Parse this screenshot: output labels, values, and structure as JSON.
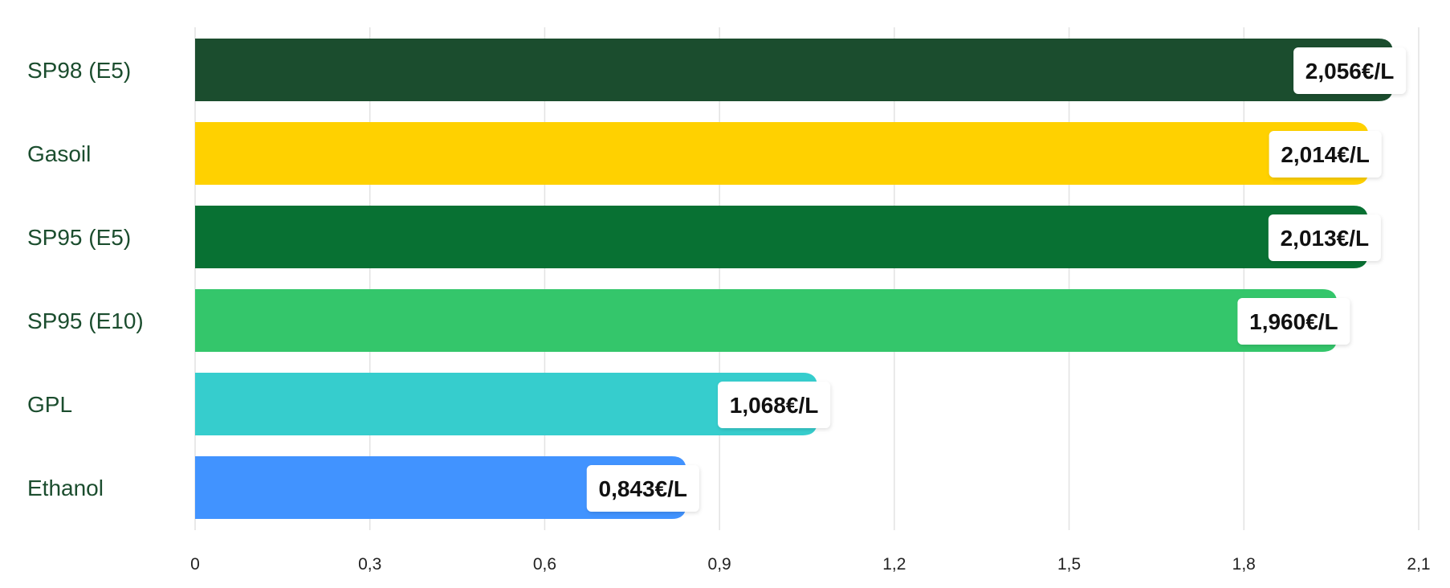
{
  "chart_data": {
    "type": "bar",
    "orientation": "horizontal",
    "categories": [
      "SP98 (E5)",
      "Gasoil",
      "SP95 (E5)",
      "SP95 (E10)",
      "GPL",
      "Ethanol"
    ],
    "values": [
      2.056,
      2.014,
      2.013,
      1.96,
      1.068,
      0.843
    ],
    "value_labels": [
      "2,056€/L",
      "2,014€/L",
      "2,013€/L",
      "1,960€/L",
      "1,068€/L",
      "0,843€/L"
    ],
    "colors": [
      "#1b4d2e",
      "#ffd100",
      "#087133",
      "#34c66b",
      "#36cdcd",
      "#4193ff"
    ],
    "label_color": "#1b4d2e",
    "xlim": [
      0,
      2.1
    ],
    "xticks": [
      0,
      0.3,
      0.6,
      0.9,
      1.2,
      1.5,
      1.8,
      2.1
    ],
    "xtick_labels": [
      "0",
      "0,3",
      "0,6",
      "0,9",
      "1,2",
      "1,5",
      "1,8",
      "2,1"
    ],
    "grid": "vertical",
    "title": "",
    "xlabel": "",
    "ylabel": ""
  }
}
